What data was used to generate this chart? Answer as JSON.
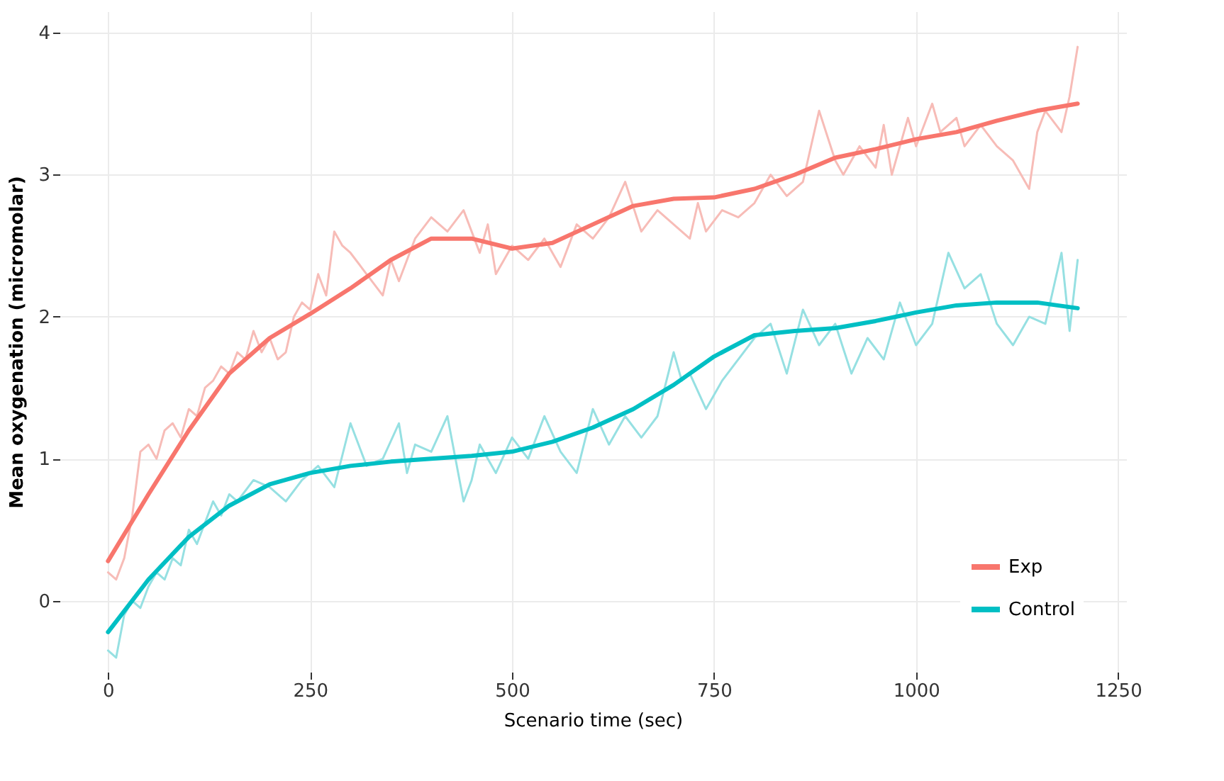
{
  "chart_data": {
    "type": "line",
    "xlabel": "Scenario time (sec)",
    "ylabel": "Mean oxygenation (micromolar)",
    "xlim": [
      -60,
      1260
    ],
    "ylim": [
      -0.5,
      4.15
    ],
    "xticks": [
      0,
      250,
      500,
      750,
      1000,
      1250
    ],
    "yticks": [
      0,
      1,
      2,
      3,
      4
    ],
    "grid": true,
    "legend": "bottom right",
    "line_style": "solid",
    "marker": "none",
    "series": [
      {
        "color": "#f7bcb7",
        "x": [
          0,
          10,
          20,
          30,
          40,
          50,
          60,
          70,
          80,
          90,
          100,
          110,
          120,
          130,
          140,
          150,
          160,
          170,
          180,
          190,
          200,
          210,
          220,
          230,
          240,
          250,
          260,
          270,
          280,
          290,
          300,
          320,
          340,
          350,
          360,
          380,
          400,
          420,
          440,
          460,
          470,
          480,
          500,
          520,
          540,
          560,
          580,
          600,
          620,
          640,
          660,
          680,
          700,
          720,
          730,
          740,
          760,
          780,
          800,
          820,
          840,
          860,
          880,
          900,
          910,
          930,
          950,
          960,
          970,
          990,
          1000,
          1020,
          1030,
          1050,
          1060,
          1080,
          1100,
          1120,
          1140,
          1150,
          1160,
          1180,
          1190,
          1200
        ],
        "values": [
          0.2,
          0.15,
          0.3,
          0.6,
          1.05,
          1.1,
          1.0,
          1.2,
          1.25,
          1.15,
          1.35,
          1.3,
          1.5,
          1.55,
          1.65,
          1.6,
          1.75,
          1.7,
          1.9,
          1.75,
          1.85,
          1.7,
          1.75,
          2.0,
          2.1,
          2.05,
          2.3,
          2.15,
          2.6,
          2.5,
          2.45,
          2.3,
          2.15,
          2.4,
          2.25,
          2.55,
          2.7,
          2.6,
          2.75,
          2.45,
          2.65,
          2.3,
          2.5,
          2.4,
          2.55,
          2.35,
          2.65,
          2.55,
          2.7,
          2.95,
          2.6,
          2.75,
          2.65,
          2.55,
          2.8,
          2.6,
          2.75,
          2.7,
          2.8,
          3.0,
          2.85,
          2.95,
          3.45,
          3.1,
          3.0,
          3.2,
          3.05,
          3.35,
          3.0,
          3.4,
          3.2,
          3.5,
          3.3,
          3.4,
          3.2,
          3.35,
          3.2,
          3.1,
          2.9,
          3.3,
          3.45,
          3.3,
          3.55,
          3.9
        ]
      },
      {
        "color": "#96e0e2",
        "x": [
          0,
          10,
          20,
          30,
          40,
          50,
          60,
          70,
          80,
          90,
          100,
          110,
          120,
          130,
          140,
          150,
          160,
          180,
          200,
          220,
          240,
          260,
          280,
          300,
          310,
          320,
          340,
          360,
          370,
          380,
          400,
          420,
          440,
          450,
          460,
          480,
          500,
          520,
          540,
          560,
          580,
          600,
          620,
          640,
          660,
          680,
          700,
          710,
          720,
          740,
          760,
          780,
          800,
          820,
          840,
          860,
          880,
          900,
          920,
          940,
          960,
          980,
          1000,
          1020,
          1040,
          1060,
          1080,
          1100,
          1120,
          1140,
          1160,
          1180,
          1190,
          1200
        ],
        "values": [
          -0.35,
          -0.4,
          -0.1,
          0.0,
          -0.05,
          0.1,
          0.2,
          0.15,
          0.3,
          0.25,
          0.5,
          0.4,
          0.55,
          0.7,
          0.6,
          0.75,
          0.7,
          0.85,
          0.8,
          0.7,
          0.85,
          0.95,
          0.8,
          1.25,
          1.1,
          0.95,
          1.0,
          1.25,
          0.9,
          1.1,
          1.05,
          1.3,
          0.7,
          0.85,
          1.1,
          0.9,
          1.15,
          1.0,
          1.3,
          1.05,
          0.9,
          1.35,
          1.1,
          1.3,
          1.15,
          1.3,
          1.75,
          1.55,
          1.6,
          1.35,
          1.55,
          1.7,
          1.85,
          1.95,
          1.6,
          2.05,
          1.8,
          1.95,
          1.6,
          1.85,
          1.7,
          2.1,
          1.8,
          1.95,
          2.45,
          2.2,
          2.3,
          1.95,
          1.8,
          2.0,
          1.95,
          2.45,
          1.9,
          2.4
        ]
      },
      {
        "name": "Exp",
        "color": "#f8766d",
        "x": [
          0,
          50,
          100,
          150,
          200,
          250,
          300,
          350,
          400,
          450,
          500,
          550,
          600,
          650,
          700,
          750,
          800,
          850,
          900,
          950,
          1000,
          1050,
          1100,
          1150,
          1200
        ],
        "values": [
          0.28,
          0.75,
          1.2,
          1.6,
          1.85,
          2.02,
          2.2,
          2.4,
          2.55,
          2.55,
          2.48,
          2.52,
          2.65,
          2.78,
          2.83,
          2.84,
          2.9,
          3.0,
          3.12,
          3.18,
          3.25,
          3.3,
          3.38,
          3.45,
          3.5
        ]
      },
      {
        "name": "Control",
        "color": "#00bfc4",
        "x": [
          0,
          50,
          100,
          150,
          200,
          250,
          300,
          350,
          400,
          450,
          500,
          550,
          600,
          650,
          700,
          750,
          800,
          850,
          900,
          950,
          1000,
          1050,
          1100,
          1150,
          1200
        ],
        "values": [
          -0.22,
          0.15,
          0.45,
          0.67,
          0.82,
          0.9,
          0.95,
          0.98,
          1.0,
          1.02,
          1.05,
          1.12,
          1.22,
          1.35,
          1.52,
          1.72,
          1.87,
          1.9,
          1.92,
          1.97,
          2.03,
          2.08,
          2.1,
          2.1,
          2.06
        ]
      }
    ]
  }
}
